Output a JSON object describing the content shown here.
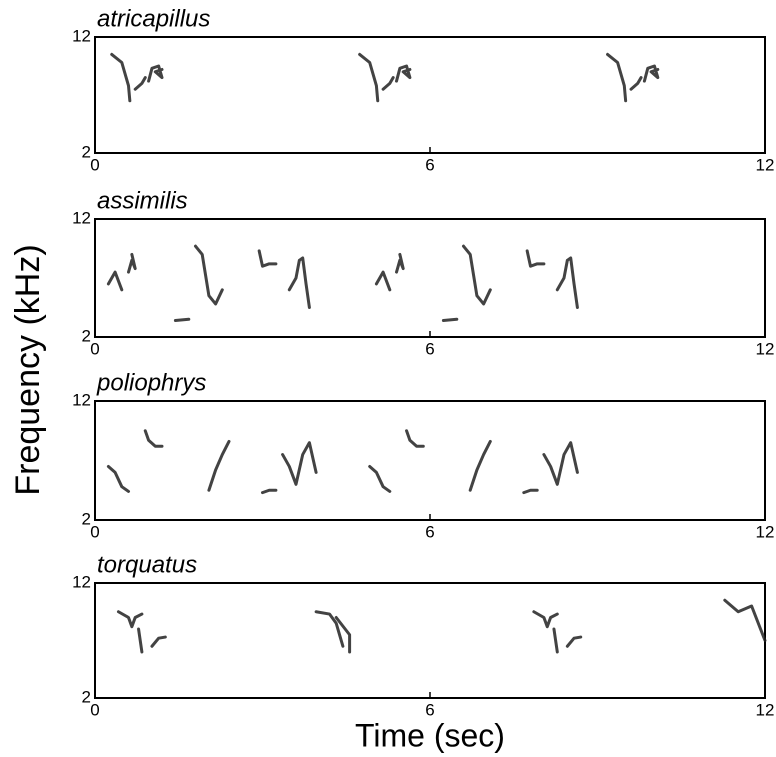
{
  "x_label": "Time (sec)",
  "y_label": "Frequency (kHz)",
  "chart_data": [
    {
      "type": "spectrogram",
      "title": "atricapillus",
      "xlim": [
        0,
        12
      ],
      "xticks": [
        0,
        6,
        12
      ],
      "ylim": [
        2,
        12
      ],
      "yticks": [
        2,
        12
      ]
    },
    {
      "type": "spectrogram",
      "title": "assimilis",
      "xlim": [
        0,
        12
      ],
      "xticks": [
        0,
        6,
        12
      ],
      "ylim": [
        2,
        12
      ],
      "yticks": [
        2,
        12
      ]
    },
    {
      "type": "spectrogram",
      "title": "poliophrys",
      "xlim": [
        0,
        12
      ],
      "xticks": [
        0,
        6,
        12
      ],
      "ylim": [
        2,
        12
      ],
      "yticks": [
        2,
        12
      ]
    },
    {
      "type": "spectrogram",
      "title": "torquatus",
      "xlim": [
        0,
        12
      ],
      "xticks": [
        0,
        6,
        12
      ],
      "ylim": [
        2,
        12
      ],
      "yticks": [
        2,
        12
      ]
    }
  ]
}
